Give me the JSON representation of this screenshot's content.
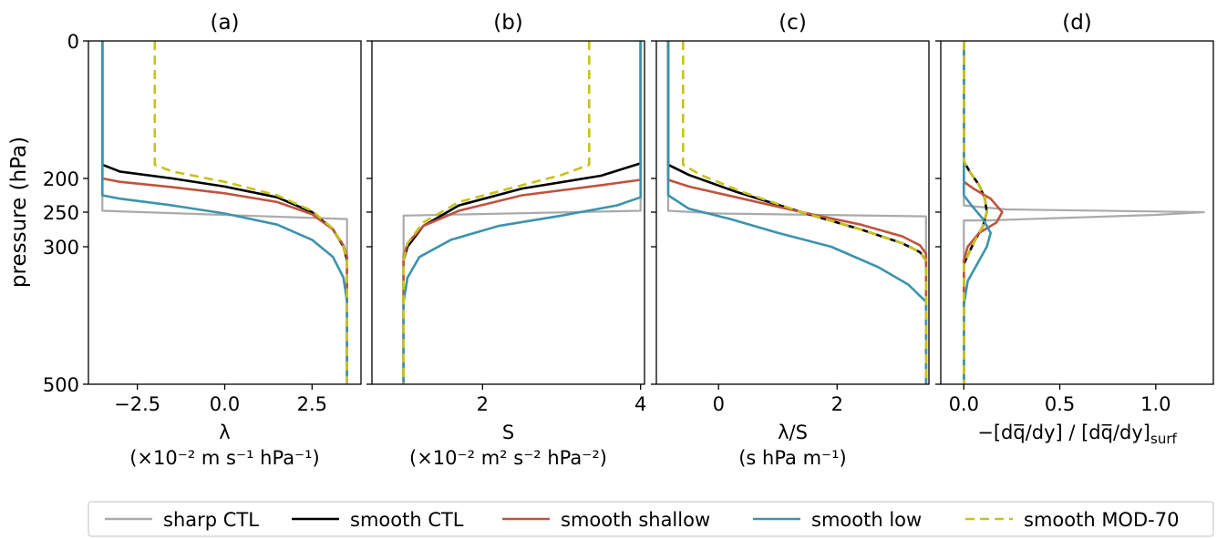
{
  "figure": {
    "ylabel": "pressure (hPa)",
    "yticks": [
      0,
      200,
      250,
      300,
      500
    ],
    "y_axis": {
      "range": [
        0,
        500
      ],
      "scale": "pressure (sigma^(2/7)-like), inverted",
      "ticks": [
        0,
        200,
        250,
        300,
        500
      ]
    }
  },
  "legend": {
    "placement": "bottom-center",
    "entries": [
      {
        "label": "sharp CTL",
        "color": "#aaaaaa",
        "style": "solid"
      },
      {
        "label": "smooth CTL",
        "color": "#000000",
        "style": "solid"
      },
      {
        "label": "smooth shallow",
        "color": "#c0533f",
        "style": "solid"
      },
      {
        "label": "smooth low",
        "color": "#3c93ad",
        "style": "solid"
      },
      {
        "label": "smooth MOD-70",
        "color": "#c7c21b",
        "style": "dashed"
      }
    ]
  },
  "chart_data": [
    {
      "type": "line",
      "title": "(a)",
      "xlabel_line1": "λ",
      "xlabel_line2": "(×10⁻² m s⁻¹ hPa⁻¹)",
      "xlim": [
        -3.9,
        3.9
      ],
      "xticks": [
        -2.5,
        0.0,
        2.5
      ],
      "xtick_labels": [
        "−2.5",
        "0.0",
        "2.5"
      ],
      "ylim": [
        0,
        500
      ],
      "series": [
        {
          "name": "sharp CTL",
          "x": [
            -3.5,
            -3.5,
            3.5,
            3.5
          ],
          "y": [
            0,
            248,
            260,
            500
          ]
        },
        {
          "name": "smooth CTL",
          "x": [
            -3.5,
            -3.5,
            -3.0,
            -1.5,
            0.0,
            1.5,
            2.5,
            3.1,
            3.4,
            3.5,
            3.5
          ],
          "y": [
            0,
            180,
            190,
            200,
            212,
            228,
            250,
            275,
            300,
            320,
            500
          ]
        },
        {
          "name": "smooth shallow",
          "x": [
            -3.5,
            -3.5,
            -3.0,
            -1.5,
            0.0,
            1.5,
            2.5,
            3.1,
            3.4,
            3.5,
            3.5
          ],
          "y": [
            0,
            200,
            205,
            213,
            222,
            235,
            253,
            275,
            298,
            315,
            500
          ]
        },
        {
          "name": "smooth low",
          "x": [
            -3.5,
            -3.5,
            -3.0,
            -1.5,
            0.0,
            1.5,
            2.5,
            3.1,
            3.4,
            3.5,
            3.5
          ],
          "y": [
            0,
            225,
            230,
            240,
            252,
            268,
            290,
            315,
            345,
            380,
            500
          ]
        },
        {
          "name": "smooth MOD-70",
          "x": [
            -2.0,
            -2.0,
            -1.5,
            0.0,
            1.5,
            2.5,
            3.1,
            3.4,
            3.5,
            3.5
          ],
          "y": [
            0,
            180,
            190,
            205,
            225,
            248,
            274,
            300,
            318,
            500
          ]
        }
      ]
    },
    {
      "type": "line",
      "title": "(b)",
      "xlabel_line1": "S",
      "xlabel_line2": "(×10⁻² m² s⁻² hPa⁻²)",
      "xlim": [
        0.6,
        4.05
      ],
      "xticks": [
        2,
        4
      ],
      "xtick_labels": [
        "2",
        "4"
      ],
      "ylim": [
        0,
        500
      ],
      "series": [
        {
          "name": "sharp CTL",
          "x": [
            4.0,
            4.0,
            1.0,
            1.0
          ],
          "y": [
            0,
            248,
            255,
            500
          ]
        },
        {
          "name": "smooth CTL",
          "x": [
            4.0,
            4.0,
            3.5,
            2.5,
            1.7,
            1.25,
            1.05,
            1.0,
            1.0
          ],
          "y": [
            0,
            178,
            196,
            215,
            240,
            270,
            300,
            320,
            500
          ]
        },
        {
          "name": "smooth shallow",
          "x": [
            4.0,
            4.0,
            3.5,
            2.5,
            1.7,
            1.25,
            1.05,
            1.0,
            1.0
          ],
          "y": [
            0,
            202,
            210,
            225,
            248,
            270,
            295,
            315,
            500
          ]
        },
        {
          "name": "smooth low",
          "x": [
            4.0,
            4.0,
            3.7,
            3.0,
            2.2,
            1.6,
            1.2,
            1.05,
            1.0,
            1.0
          ],
          "y": [
            0,
            228,
            240,
            255,
            270,
            290,
            315,
            345,
            380,
            500
          ]
        },
        {
          "name": "smooth MOD-70",
          "x": [
            3.35,
            3.35,
            3.0,
            2.5,
            1.7,
            1.25,
            1.05,
            1.0,
            1.0
          ],
          "y": [
            0,
            180,
            195,
            210,
            235,
            265,
            295,
            320,
            500
          ]
        }
      ]
    },
    {
      "type": "line",
      "title": "(c)",
      "xlabel_line1": "λ/S",
      "xlabel_line2": "(s hPa m⁻¹)",
      "xlim": [
        -1.05,
        3.55
      ],
      "xticks": [
        0,
        2
      ],
      "xtick_labels": [
        "0",
        "2"
      ],
      "ylim": [
        0,
        500
      ],
      "series": [
        {
          "name": "sharp CTL",
          "x": [
            -0.85,
            -0.85,
            0.0,
            3.5,
            3.5
          ],
          "y": [
            0,
            248,
            252,
            256,
            500
          ]
        },
        {
          "name": "smooth CTL",
          "x": [
            -0.85,
            -0.85,
            -0.5,
            0.3,
            1.4,
            2.4,
            3.1,
            3.4,
            3.5,
            3.5
          ],
          "y": [
            0,
            180,
            195,
            220,
            250,
            275,
            295,
            308,
            320,
            500
          ]
        },
        {
          "name": "smooth shallow",
          "x": [
            -0.85,
            -0.85,
            -0.5,
            0.3,
            1.4,
            2.4,
            3.1,
            3.4,
            3.5,
            3.5
          ],
          "y": [
            0,
            202,
            212,
            228,
            250,
            268,
            285,
            298,
            310,
            500
          ]
        },
        {
          "name": "smooth low",
          "x": [
            -0.85,
            -0.85,
            -0.5,
            0.2,
            1.0,
            1.9,
            2.7,
            3.2,
            3.5,
            3.5
          ],
          "y": [
            0,
            225,
            245,
            260,
            280,
            300,
            330,
            355,
            380,
            500
          ]
        },
        {
          "name": "smooth MOD-70",
          "x": [
            -0.6,
            -0.6,
            -0.3,
            0.4,
            1.4,
            2.4,
            3.1,
            3.4,
            3.5,
            3.5
          ],
          "y": [
            0,
            180,
            195,
            220,
            250,
            275,
            295,
            308,
            320,
            500
          ]
        }
      ]
    },
    {
      "type": "line",
      "title": "(d)",
      "xlabel_line1": "−[dq̅/dy] / [dq̅/dy]",
      "xlabel_sub": "surf",
      "xlim": [
        -0.12,
        1.3
      ],
      "xticks": [
        0.0,
        0.5,
        1.0
      ],
      "xtick_labels": [
        "0.0",
        "0.5",
        "1.0"
      ],
      "ylim": [
        0,
        500
      ],
      "series": [
        {
          "name": "sharp CTL",
          "x": [
            0.0,
            0.0,
            0.22,
            1.25,
            1.0,
            0.12,
            0.0,
            0.0
          ],
          "y": [
            0,
            240,
            246,
            250,
            254,
            262,
            262,
            500
          ]
        },
        {
          "name": "smooth CTL",
          "x": [
            0.0,
            0.0,
            0.03,
            0.08,
            0.11,
            0.12,
            0.1,
            0.05,
            0.0,
            0.0
          ],
          "y": [
            0,
            175,
            190,
            210,
            230,
            250,
            270,
            295,
            325,
            500
          ]
        },
        {
          "name": "smooth shallow",
          "x": [
            0.0,
            0.0,
            0.05,
            0.14,
            0.2,
            0.17,
            0.08,
            0.02,
            0.0,
            0.0
          ],
          "y": [
            0,
            205,
            215,
            230,
            250,
            265,
            280,
            300,
            320,
            500
          ]
        },
        {
          "name": "smooth low",
          "x": [
            0.0,
            0.0,
            0.04,
            0.1,
            0.14,
            0.12,
            0.07,
            0.02,
            0.0,
            0.0
          ],
          "y": [
            0,
            225,
            240,
            260,
            280,
            300,
            325,
            350,
            385,
            500
          ]
        },
        {
          "name": "smooth MOD-70",
          "x": [
            0.0,
            0.0,
            0.03,
            0.08,
            0.11,
            0.12,
            0.1,
            0.05,
            0.0,
            0.0
          ],
          "y": [
            0,
            175,
            190,
            210,
            230,
            250,
            270,
            295,
            325,
            500
          ]
        }
      ]
    }
  ]
}
